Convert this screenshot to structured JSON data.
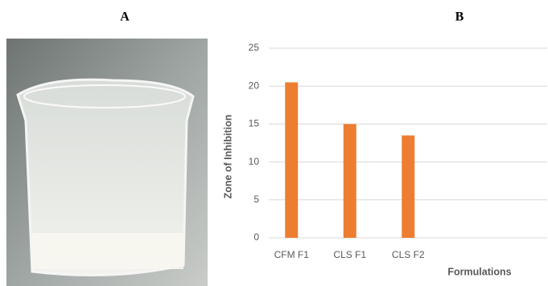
{
  "panel_labels": [
    "A",
    "B"
  ],
  "chart_data": {
    "type": "bar",
    "categories": [
      "CFM F1",
      "CLS F1",
      "CLS F2"
    ],
    "values": [
      20.5,
      15,
      13.5
    ],
    "color": "#ed7d31",
    "y_label": "Zone of Inhibition",
    "x_label": "Formulations",
    "ylim": [
      0,
      25
    ],
    "yticks": [
      0,
      5,
      10,
      15,
      20,
      25
    ],
    "grid": true
  }
}
